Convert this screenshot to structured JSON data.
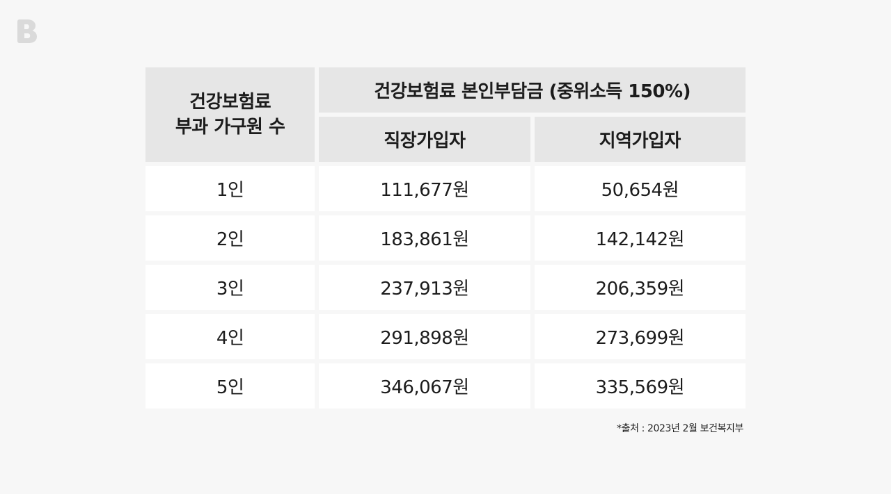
{
  "logo": {
    "icon": "brand-b-logo-icon",
    "color": "#dadada"
  },
  "table": {
    "row_header": [
      "건강보험료",
      "부과 가구원 수"
    ],
    "group_header": "건강보험료 본인부담금 (중위소득 150%)",
    "sub_headers": [
      "직장가입자",
      "지역가입자"
    ],
    "rows": [
      {
        "label": "1인",
        "employee": "111,677원",
        "regional": "50,654원"
      },
      {
        "label": "2인",
        "employee": "183,861원",
        "regional": "142,142원"
      },
      {
        "label": "3인",
        "employee": "237,913원",
        "regional": "206,359원"
      },
      {
        "label": "4인",
        "employee": "291,898원",
        "regional": "273,699원"
      },
      {
        "label": "5인",
        "employee": "346,067원",
        "regional": "335,569원"
      }
    ]
  },
  "source": "*출처 : 2023년 2월 보건복지부",
  "colors": {
    "background": "#f7f7f7",
    "header_bg": "#e6e6e6",
    "cell_bg": "#ffffff",
    "text": "#1c1c1c"
  }
}
